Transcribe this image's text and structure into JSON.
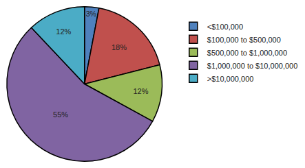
{
  "chart_data": {
    "type": "pie",
    "categories": [
      "<$100,000",
      "$100,000 to $500,000",
      "$500,000 to $1,000,000",
      "$1,000,000 to $10,000,000",
      ">$10,000,000"
    ],
    "values": [
      3,
      18,
      12,
      55,
      12
    ],
    "value_labels": [
      "3%",
      "18%",
      "12%",
      "55%",
      "12%"
    ],
    "colors": [
      "#4F81BD",
      "#C0504D",
      "#9BBB59",
      "#8064A2",
      "#4BACC6"
    ],
    "data_labels": true,
    "legend": "right"
  }
}
